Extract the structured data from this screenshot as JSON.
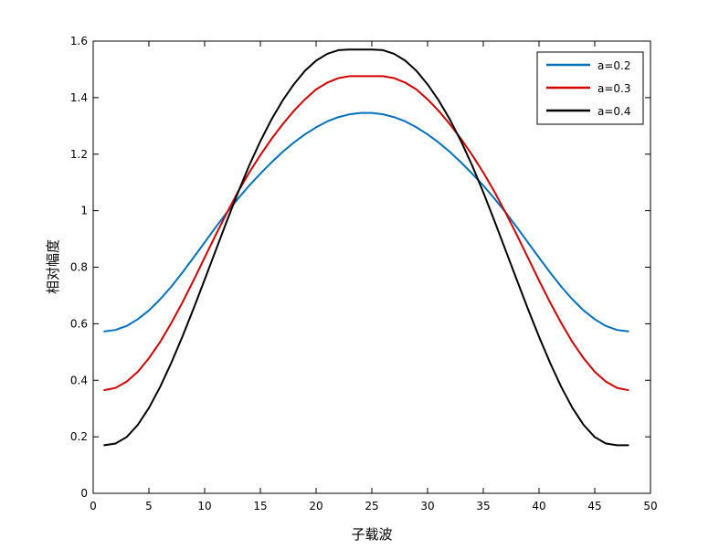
{
  "chart_data": {
    "type": "line",
    "title": "",
    "xlabel": "子载波",
    "ylabel": "相对幅度",
    "xlim": [
      0,
      50
    ],
    "ylim": [
      0,
      1.6
    ],
    "xticks": [
      0,
      5,
      10,
      15,
      20,
      25,
      30,
      35,
      40,
      45,
      50
    ],
    "yticks": [
      0,
      0.2,
      0.4,
      0.6,
      0.8,
      1,
      1.2,
      1.4,
      1.6
    ],
    "xtick_labels": [
      "0",
      "5",
      "10",
      "15",
      "20",
      "25",
      "30",
      "35",
      "40",
      "45",
      "50"
    ],
    "ytick_labels": [
      "0",
      "0.2",
      "0.4",
      "0.6",
      "0.8",
      "1",
      "1.2",
      "1.4",
      "1.6"
    ],
    "grid": false,
    "legend_position": "top-right",
    "x": [
      1,
      2,
      3,
      4,
      5,
      6,
      7,
      8,
      9,
      10,
      11,
      12,
      13,
      14,
      15,
      16,
      17,
      18,
      19,
      20,
      21,
      22,
      23,
      24,
      25,
      26,
      27,
      28,
      29,
      30,
      31,
      32,
      33,
      34,
      35,
      36,
      37,
      38,
      39,
      40,
      41,
      42,
      43,
      44,
      45,
      46,
      47,
      48
    ],
    "series": [
      {
        "name": "a=0.2",
        "color": "#0072BD",
        "values": [
          0.573,
          0.578,
          0.592,
          0.616,
          0.647,
          0.686,
          0.731,
          0.781,
          0.834,
          0.888,
          0.942,
          0.994,
          1.043,
          1.089,
          1.131,
          1.171,
          1.208,
          1.241,
          1.27,
          1.295,
          1.316,
          1.331,
          1.341,
          1.346,
          1.346,
          1.341,
          1.331,
          1.316,
          1.295,
          1.27,
          1.241,
          1.208,
          1.171,
          1.131,
          1.089,
          1.043,
          0.994,
          0.942,
          0.888,
          0.834,
          0.781,
          0.731,
          0.686,
          0.647,
          0.616,
          0.592,
          0.578,
          0.573
        ]
      },
      {
        "name": "a=0.3",
        "color": "#D40000",
        "values": [
          0.365,
          0.373,
          0.395,
          0.43,
          0.478,
          0.535,
          0.602,
          0.675,
          0.753,
          0.834,
          0.915,
          0.993,
          1.067,
          1.135,
          1.197,
          1.254,
          1.306,
          1.353,
          1.394,
          1.429,
          1.453,
          1.469,
          1.476,
          1.476,
          1.476,
          1.476,
          1.469,
          1.453,
          1.429,
          1.394,
          1.353,
          1.306,
          1.254,
          1.197,
          1.135,
          1.067,
          0.993,
          0.915,
          0.834,
          0.753,
          0.675,
          0.602,
          0.535,
          0.478,
          0.43,
          0.395,
          0.373,
          0.365
        ]
      },
      {
        "name": "a=0.4",
        "color": "#000000",
        "values": [
          0.17,
          0.176,
          0.199,
          0.242,
          0.302,
          0.376,
          0.461,
          0.554,
          0.653,
          0.756,
          0.86,
          0.964,
          1.065,
          1.16,
          1.246,
          1.323,
          1.39,
          1.447,
          1.495,
          1.531,
          1.555,
          1.568,
          1.57,
          1.57,
          1.57,
          1.568,
          1.555,
          1.531,
          1.495,
          1.447,
          1.39,
          1.323,
          1.246,
          1.16,
          1.065,
          0.964,
          0.86,
          0.756,
          0.653,
          0.554,
          0.461,
          0.376,
          0.302,
          0.242,
          0.199,
          0.176,
          0.17,
          0.17
        ]
      }
    ]
  }
}
